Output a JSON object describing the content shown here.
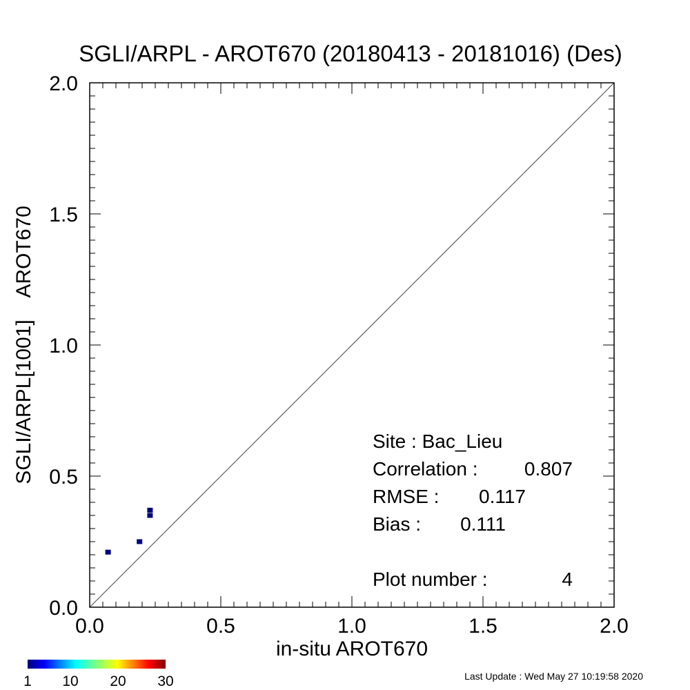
{
  "chart_data": {
    "type": "scatter",
    "title": "SGLI/ARPL - AROT670 (20180413 - 20181016) (Des)",
    "xlabel": "in-situ AROT670",
    "ylabel": "SGLI/ARPL[1001]    AROT670",
    "xlim": [
      0.0,
      2.0
    ],
    "ylim": [
      0.0,
      2.0
    ],
    "x_ticks": [
      "0.0",
      "0.5",
      "1.0",
      "1.5",
      "2.0"
    ],
    "y_ticks": [
      "0.0",
      "0.5",
      "1.0",
      "1.5",
      "2.0"
    ],
    "x_tick_values": [
      0.0,
      0.5,
      1.0,
      1.5,
      2.0
    ],
    "y_tick_values": [
      0.0,
      0.5,
      1.0,
      1.5,
      2.0
    ],
    "grid": false,
    "reference_line": "1:1",
    "points": [
      {
        "x": 0.07,
        "y": 0.21,
        "count": 1
      },
      {
        "x": 0.19,
        "y": 0.25,
        "count": 1
      },
      {
        "x": 0.23,
        "y": 0.35,
        "count": 1
      },
      {
        "x": 0.23,
        "y": 0.37,
        "count": 1
      }
    ],
    "point_color": "#00007f",
    "stats": {
      "site_label": "Site : Bac_Lieu",
      "correlation_label": "Correlation :",
      "correlation_value": "0.807",
      "rmse_label": "RMSE :",
      "rmse_value": "0.117",
      "bias_label": "Bias :",
      "bias_value": "0.111",
      "plot_number_label": "Plot number :",
      "plot_number_value": "4"
    },
    "colorbar": {
      "colormap": "jet",
      "ticks": [
        "1",
        "10",
        "20",
        "30"
      ],
      "tick_values": [
        1,
        10,
        20,
        30
      ],
      "range": [
        1,
        30
      ]
    }
  },
  "footer": {
    "last_update": "Last Update : Wed May 27 10:19:58 2020"
  }
}
